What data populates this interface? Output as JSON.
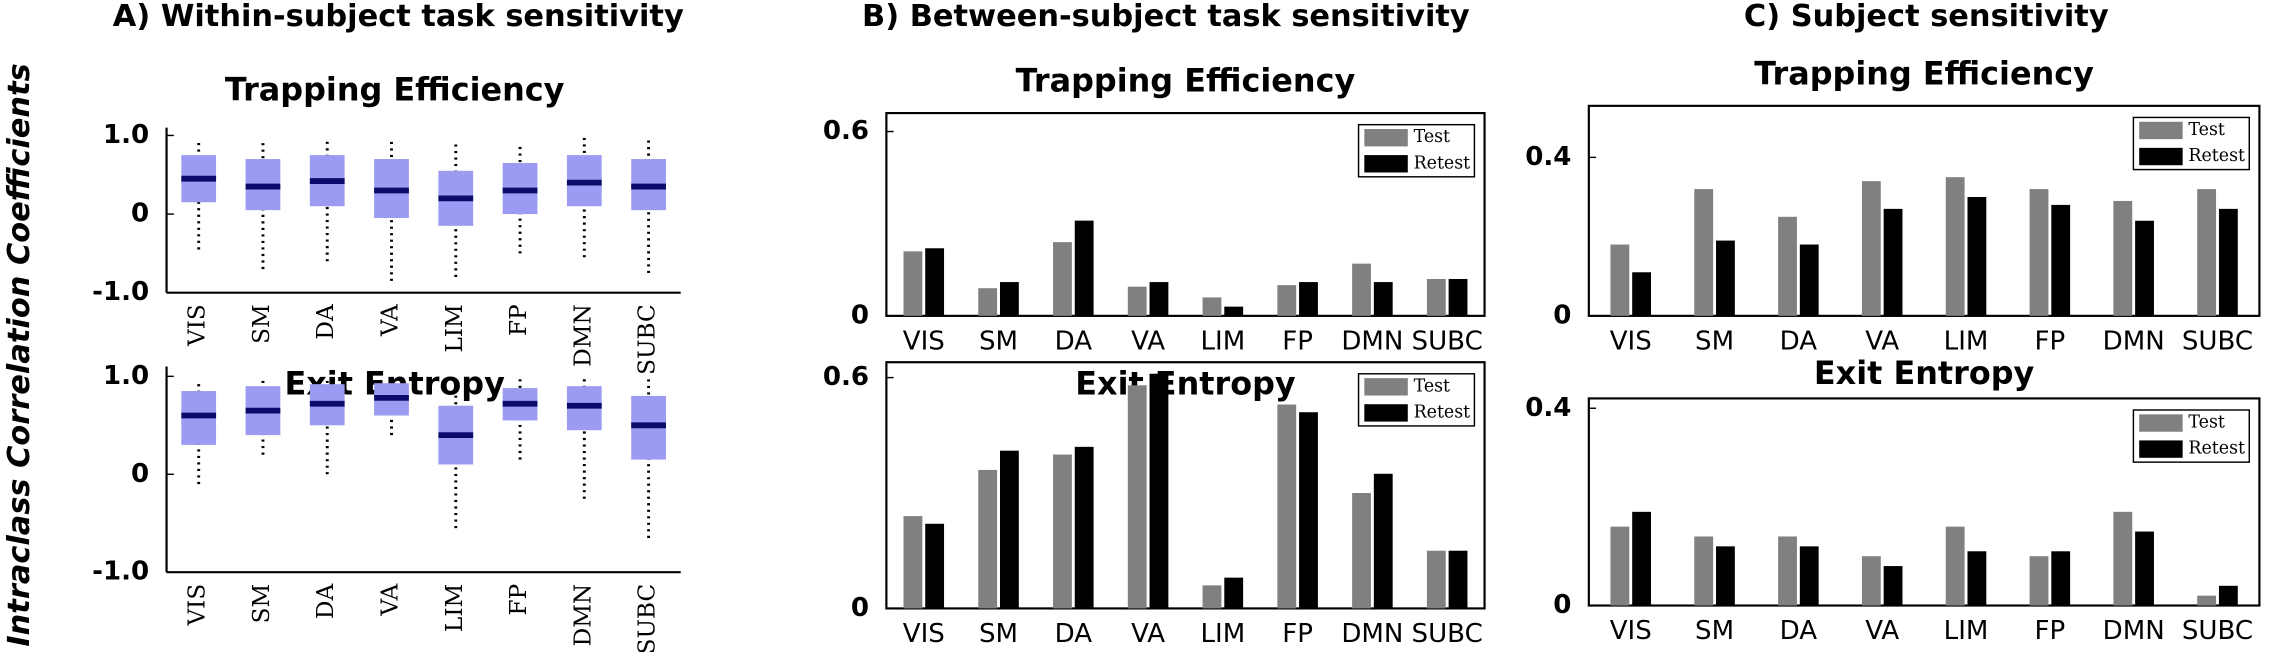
{
  "panel_titles": [
    "A) Within-subject task sensitivity",
    "B) Between-subject task sensitivity",
    "C) Subject sensitivity"
  ],
  "y_label": "Intraclass Correlation Coefficients",
  "chart_data": [
    {
      "type": "box",
      "title": "Trapping Efficiency",
      "categories": [
        "VIS",
        "SM",
        "DA",
        "VA",
        "LIM",
        "FP",
        "DMN",
        "SUBC"
      ],
      "medians": [
        0.45,
        0.35,
        0.42,
        0.3,
        0.2,
        0.3,
        0.4,
        0.35
      ],
      "q1": [
        0.15,
        0.05,
        0.1,
        -0.05,
        -0.15,
        0.0,
        0.1,
        0.05
      ],
      "q3": [
        0.75,
        0.7,
        0.75,
        0.7,
        0.55,
        0.65,
        0.75,
        0.7
      ],
      "mins": [
        -0.45,
        -0.7,
        -0.6,
        -0.85,
        -0.8,
        -0.5,
        -0.55,
        -0.75
      ],
      "maxs": [
        0.95,
        0.95,
        0.95,
        0.95,
        0.9,
        0.9,
        0.98,
        0.95
      ],
      "box_color": "#9b9bf2",
      "median_color": "#0b0b6b",
      "ylim": [
        -1,
        1.1
      ],
      "yticks": [
        {
          "value": 1,
          "label": "1.0"
        },
        0,
        {
          "value": -1,
          "label": "-1.0"
        }
      ]
    },
    {
      "type": "box",
      "title": "Exit Entropy",
      "categories": [
        "VIS",
        "SM",
        "DA",
        "VA",
        "LIM",
        "FP",
        "DMN",
        "SUBC"
      ],
      "medians": [
        0.6,
        0.65,
        0.72,
        0.78,
        0.4,
        0.72,
        0.7,
        0.5
      ],
      "q1": [
        0.3,
        0.4,
        0.5,
        0.6,
        0.1,
        0.55,
        0.45,
        0.15
      ],
      "q3": [
        0.85,
        0.9,
        0.92,
        0.93,
        0.7,
        0.88,
        0.9,
        0.8
      ],
      "mins": [
        -0.1,
        0.2,
        0.0,
        0.4,
        -0.55,
        0.15,
        -0.25,
        -0.65
      ],
      "maxs": [
        0.95,
        0.98,
        0.99,
        0.99,
        0.95,
        0.97,
        0.98,
        0.97
      ],
      "box_color": "#9b9bf2",
      "median_color": "#0b0b6b",
      "ylim": [
        -1,
        1.1
      ],
      "yticks": [
        {
          "value": 1,
          "label": "1.0"
        },
        0,
        {
          "value": -1,
          "label": "-1.0"
        }
      ]
    },
    {
      "type": "bar",
      "title": "Trapping Efficiency",
      "categories": [
        "VIS",
        "SM",
        "DA",
        "VA",
        "LIM",
        "FP",
        "DMN",
        "SUBC"
      ],
      "series": [
        {
          "name": "Test",
          "color": "#808080",
          "values": [
            0.21,
            0.09,
            0.24,
            0.095,
            0.06,
            0.1,
            0.17,
            0.12
          ]
        },
        {
          "name": "Retest",
          "color": "#000000",
          "values": [
            0.22,
            0.11,
            0.31,
            0.11,
            0.03,
            0.11,
            0.11,
            0.12
          ]
        }
      ],
      "ylim": [
        0,
        0.66
      ],
      "yticks": [
        0,
        0.6
      ]
    },
    {
      "type": "bar",
      "title": "Exit Entropy",
      "categories": [
        "VIS",
        "SM",
        "DA",
        "VA",
        "LIM",
        "FP",
        "DMN",
        "SUBC"
      ],
      "series": [
        {
          "name": "Test",
          "color": "#808080",
          "values": [
            0.24,
            0.36,
            0.4,
            0.58,
            0.06,
            0.53,
            0.3,
            0.15
          ]
        },
        {
          "name": "Retest",
          "color": "#000000",
          "values": [
            0.22,
            0.41,
            0.42,
            0.61,
            0.08,
            0.51,
            0.35,
            0.15
          ]
        }
      ],
      "ylim": [
        0,
        0.64
      ],
      "yticks": [
        0,
        0.6
      ]
    },
    {
      "type": "bar",
      "title": "Trapping Efficiency",
      "categories": [
        "VIS",
        "SM",
        "DA",
        "VA",
        "LIM",
        "FP",
        "DMN",
        "SUBC"
      ],
      "series": [
        {
          "name": "Test",
          "color": "#808080",
          "values": [
            0.18,
            0.32,
            0.25,
            0.34,
            0.35,
            0.32,
            0.29,
            0.32
          ]
        },
        {
          "name": "Retest",
          "color": "#000000",
          "values": [
            0.11,
            0.19,
            0.18,
            0.27,
            0.3,
            0.28,
            0.24,
            0.27
          ]
        }
      ],
      "ylim": [
        0,
        0.53
      ],
      "yticks": [
        0,
        0.4
      ]
    },
    {
      "type": "bar",
      "title": "Exit Entropy",
      "categories": [
        "VIS",
        "SM",
        "DA",
        "VA",
        "LIM",
        "FP",
        "DMN",
        "SUBC"
      ],
      "series": [
        {
          "name": "Test",
          "color": "#808080",
          "values": [
            0.16,
            0.14,
            0.14,
            0.1,
            0.16,
            0.1,
            0.19,
            0.02
          ]
        },
        {
          "name": "Retest",
          "color": "#000000",
          "values": [
            0.19,
            0.12,
            0.12,
            0.08,
            0.11,
            0.11,
            0.15,
            0.04
          ]
        }
      ],
      "ylim": [
        0,
        0.42
      ],
      "yticks": [
        0,
        0.4
      ]
    }
  ]
}
